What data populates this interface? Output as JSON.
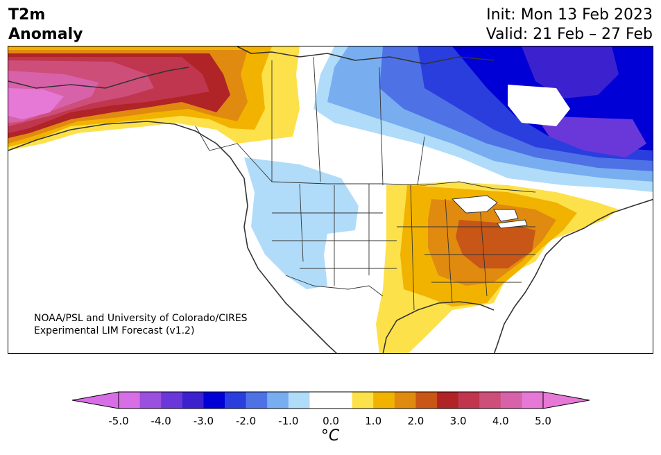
{
  "header": {
    "title_line1": "T2m",
    "title_line2": "Anomaly",
    "init": "Init: Mon 13 Feb 2023",
    "valid": "Valid: 21 Feb – 27 Feb"
  },
  "credit": {
    "line1": "NOAA/PSL and University of Colorado/CIRES",
    "line2": "Experimental LIM Forecast (v1.2)"
  },
  "colorbar": {
    "unit": "°C",
    "ticks": [
      "-5.0",
      "-4.0",
      "-3.0",
      "-2.0",
      "-1.0",
      "0.0",
      "1.0",
      "2.0",
      "3.0",
      "4.0",
      "5.0"
    ],
    "colors": [
      "#d86ee6",
      "#9b4fde",
      "#6a38d8",
      "#3c22cf",
      "#0000d6",
      "#2a3ede",
      "#4e72e6",
      "#78aef0",
      "#b0dcfa",
      "#ffffff",
      "#ffffff",
      "#fde14a",
      "#f2b300",
      "#e08a10",
      "#c85616",
      "#b02326",
      "#c0364e",
      "#cd4f79",
      "#d862aa",
      "#e678d6"
    ],
    "under_color": "#d86ee6",
    "over_color": "#e678d6"
  }
}
